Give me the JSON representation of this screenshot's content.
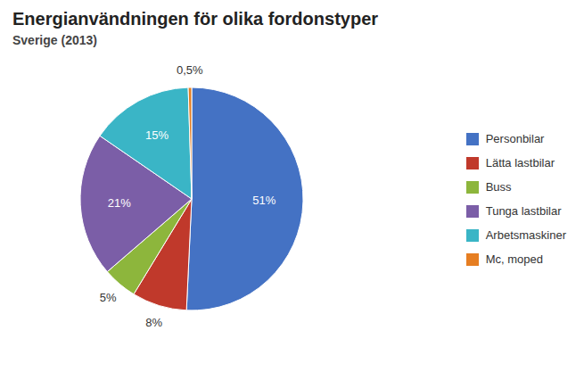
{
  "chart_data": {
    "type": "pie",
    "title": "Energianvändningen för olika fordonstyper",
    "subtitle": "Sverige (2013)",
    "categories": [
      "Personbilar",
      "Lätta lastbilar",
      "Buss",
      "Tunga lastbilar",
      "Arbetsmaskiner",
      "Mc, moped"
    ],
    "values": [
      51,
      8,
      5,
      21,
      15,
      0.5
    ],
    "value_labels": [
      "51%",
      "8%",
      "5%",
      "21%",
      "15%",
      "0,5%"
    ],
    "colors": [
      "#4472c4",
      "#c0392b",
      "#8db63c",
      "#7b5ea7",
      "#3ab5c6",
      "#e67e22"
    ],
    "data_labels": true,
    "legend": "right"
  }
}
